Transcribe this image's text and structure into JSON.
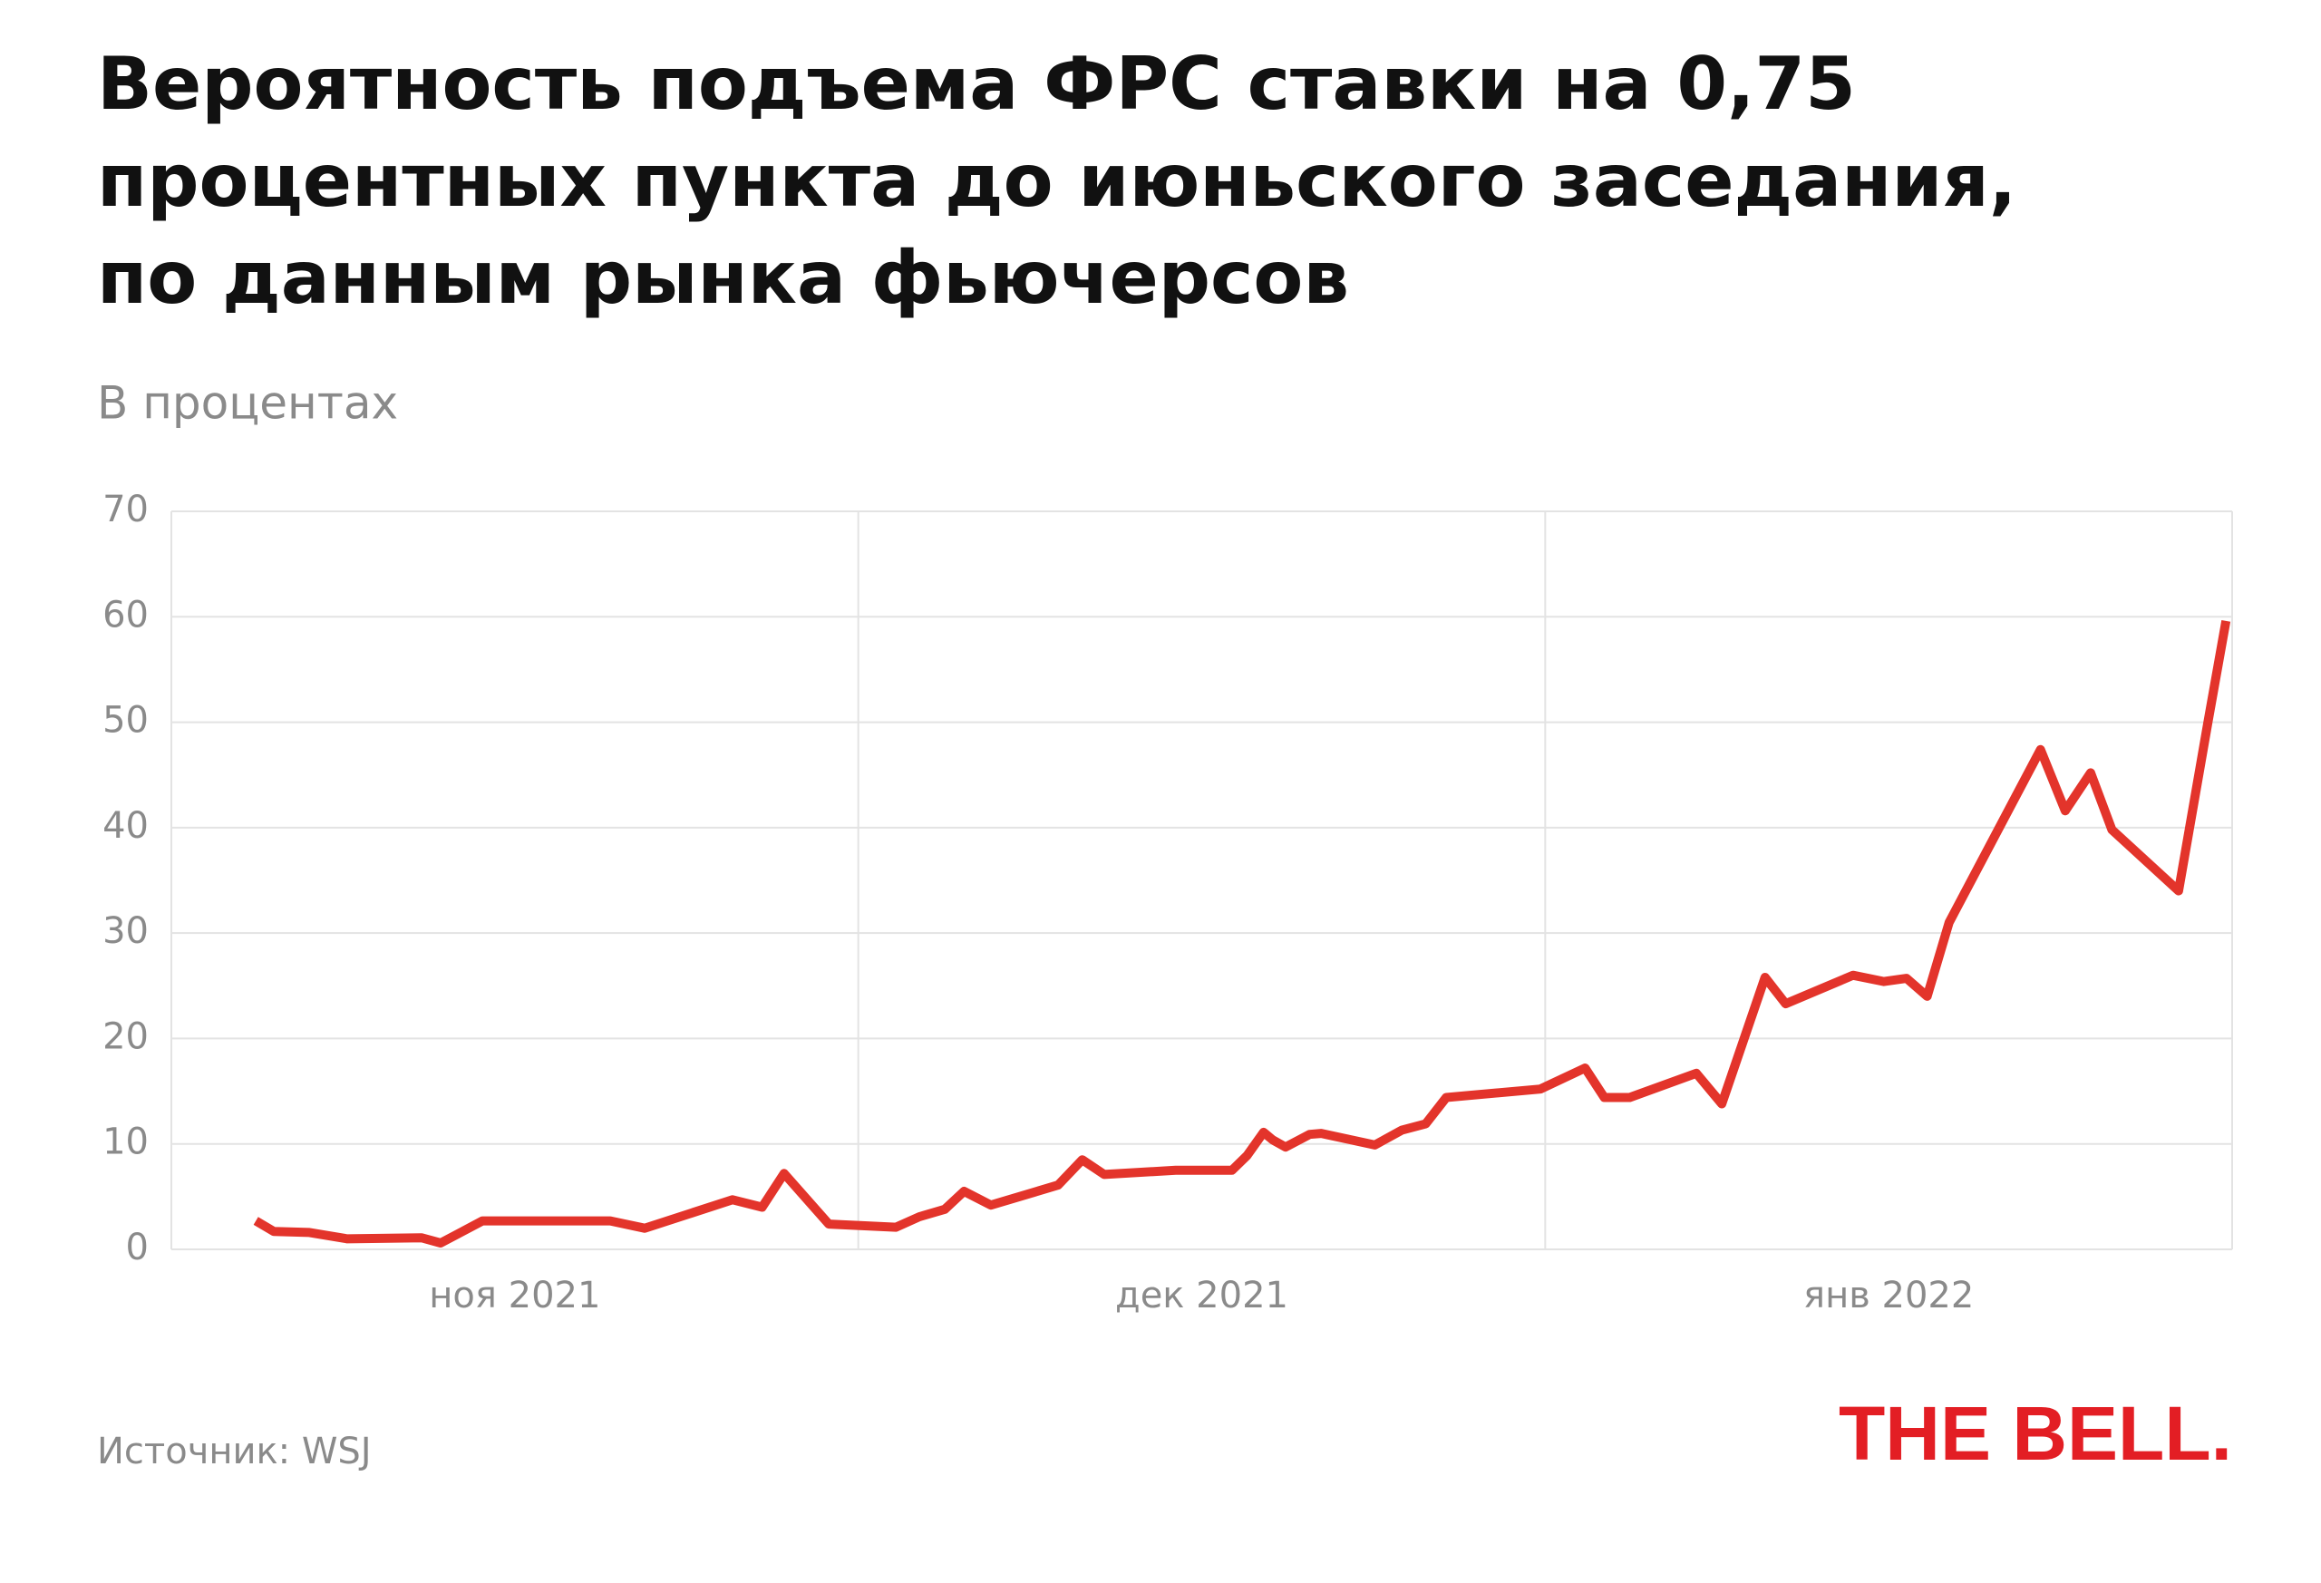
{
  "chart_data": {
    "type": "line",
    "title_lines": [
      "Вероятность подъема ФРС ставки на 0,75",
      "процентных пункта до июньского заседания,",
      "по данным рынка фьючерсов"
    ],
    "subtitle": "В процентах",
    "source": "Источник: WSJ",
    "logo": "THE BELL.",
    "x": [
      0.123,
      0.149,
      0.201,
      0.256,
      0.364,
      0.392,
      0.453,
      0.639,
      0.689,
      0.817,
      0.86,
      0.892,
      0.957,
      1.055,
      1.089,
      1.126,
      1.154,
      1.193,
      1.291,
      1.326,
      1.358,
      1.462,
      1.544,
      1.566,
      1.59,
      1.603,
      1.622,
      1.657,
      1.674,
      1.752,
      1.791,
      1.826,
      1.856,
      1.993,
      2.058,
      2.086,
      2.123,
      2.22,
      2.257,
      2.32,
      2.35,
      2.448,
      2.493,
      2.526,
      2.556,
      2.588,
      2.721,
      2.757,
      2.794,
      2.825,
      2.922,
      2.965,
      2.991
    ],
    "values": [
      2.7,
      1.7,
      1.6,
      1.0,
      1.1,
      0.6,
      2.7,
      2.7,
      2.0,
      4.7,
      4.0,
      7.2,
      2.4,
      2.1,
      3.1,
      3.8,
      5.5,
      4.2,
      6.1,
      8.5,
      7.1,
      7.5,
      7.5,
      8.9,
      11.1,
      10.4,
      9.7,
      10.9,
      11.0,
      9.9,
      11.3,
      11.9,
      14.4,
      15.2,
      17.2,
      14.4,
      14.4,
      16.7,
      13.8,
      25.8,
      23.3,
      26.0,
      25.4,
      25.7,
      24.0,
      31.0,
      47.4,
      41.6,
      45.2,
      39.8,
      34.0,
      50.1,
      59.6
    ],
    "color": "#e3342b",
    "xlim": [
      0,
      3
    ],
    "xticks": [
      {
        "value": 0.5,
        "label": "ноя 2021"
      },
      {
        "value": 1.5,
        "label": "дек 2021"
      },
      {
        "value": 2.5,
        "label": "янв 2022"
      }
    ],
    "xgrid": [
      0,
      1,
      2,
      3
    ],
    "ylim": [
      0,
      70
    ],
    "yticks": [
      0,
      10,
      20,
      30,
      40,
      50,
      60,
      70
    ],
    "grid": true
  }
}
